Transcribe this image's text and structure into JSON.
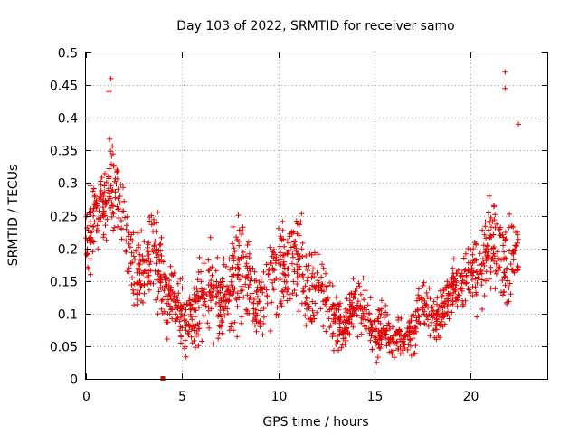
{
  "chart_data": {
    "type": "scatter",
    "title": "Day 103 of 2022, SRMTID for receiver samo",
    "xlabel": "GPS time / hours",
    "ylabel": "SRMTID / TECUs",
    "xlim": [
      0,
      24
    ],
    "ylim": [
      0,
      0.5
    ],
    "xticks": [
      0,
      5,
      10,
      15,
      20
    ],
    "xtick_labels": [
      "0",
      "5",
      "10",
      "15",
      "20"
    ],
    "yticks": [
      0,
      0.05,
      0.1,
      0.15,
      0.2,
      0.25,
      0.3,
      0.35,
      0.4,
      0.45,
      0.5
    ],
    "ytick_labels": [
      "0",
      "0.05",
      "0.1",
      "0.15",
      "0.2",
      "0.25",
      "0.3",
      "0.35",
      "0.4",
      "0.45",
      "0.5"
    ],
    "grid": true,
    "marker": "+",
    "color": "#e00000",
    "envelope_note": "dense cloud of values per hour; approximate median and spread read from the plot",
    "trend": {
      "hours": [
        0,
        0.5,
        1,
        1.3,
        2,
        2.5,
        3,
        3.5,
        4,
        4.5,
        5,
        5.5,
        6,
        6.5,
        7,
        7.5,
        8,
        8.5,
        9,
        9.5,
        10,
        10.5,
        11,
        11.5,
        12,
        12.5,
        13,
        13.5,
        14,
        14.5,
        15,
        15.5,
        16,
        16.5,
        17,
        17.5,
        18,
        18.5,
        19,
        19.5,
        20,
        20.5,
        21,
        21.5,
        22,
        22.5
      ],
      "median": [
        0.22,
        0.24,
        0.27,
        0.3,
        0.24,
        0.17,
        0.16,
        0.2,
        0.14,
        0.12,
        0.1,
        0.09,
        0.13,
        0.13,
        0.12,
        0.14,
        0.18,
        0.15,
        0.12,
        0.15,
        0.17,
        0.16,
        0.19,
        0.12,
        0.17,
        0.12,
        0.09,
        0.08,
        0.12,
        0.1,
        0.07,
        0.07,
        0.06,
        0.06,
        0.07,
        0.12,
        0.09,
        0.1,
        0.14,
        0.14,
        0.17,
        0.16,
        0.21,
        0.2,
        0.17,
        0.2
      ],
      "spread": [
        0.05,
        0.05,
        0.05,
        0.07,
        0.05,
        0.05,
        0.05,
        0.06,
        0.05,
        0.04,
        0.04,
        0.04,
        0.05,
        0.05,
        0.05,
        0.06,
        0.07,
        0.06,
        0.05,
        0.06,
        0.07,
        0.05,
        0.06,
        0.05,
        0.06,
        0.04,
        0.04,
        0.03,
        0.04,
        0.03,
        0.03,
        0.03,
        0.02,
        0.02,
        0.03,
        0.03,
        0.03,
        0.03,
        0.03,
        0.03,
        0.04,
        0.05,
        0.07,
        0.06,
        0.06,
        0.05
      ]
    },
    "notable_points": [
      {
        "x": 1.3,
        "y": 0.46
      },
      {
        "x": 1.2,
        "y": 0.44
      },
      {
        "x": 21.8,
        "y": 0.47
      },
      {
        "x": 21.8,
        "y": 0.445
      },
      {
        "x": 22.5,
        "y": 0.39
      },
      {
        "x": 4.0,
        "y": 0.0
      }
    ],
    "n_points": 1600
  }
}
